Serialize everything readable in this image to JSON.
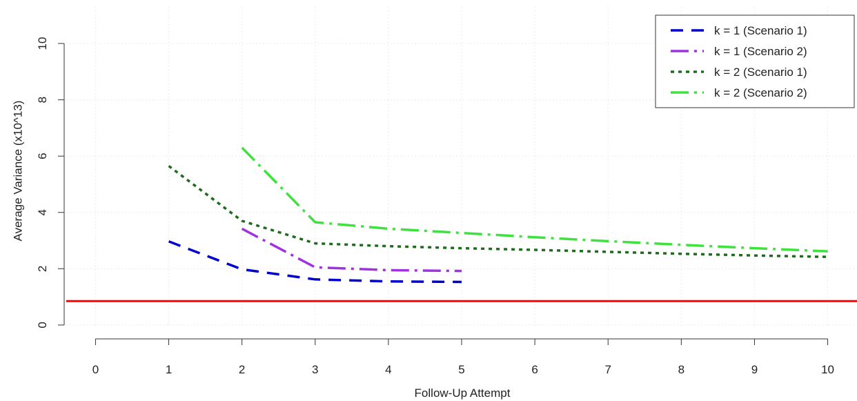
{
  "chart_data": {
    "type": "line",
    "title": "",
    "xlabel": "Follow-Up Attempt",
    "ylabel": "Average Variance (x10^13)",
    "xlim": [
      -0.4,
      10.4
    ],
    "ylim": [
      -0.1,
      11.3
    ],
    "xticks": [
      0,
      1,
      2,
      3,
      4,
      5,
      6,
      7,
      8,
      9,
      10
    ],
    "yticks": [
      0,
      2,
      4,
      6,
      8,
      10
    ],
    "grid": true,
    "legend_position": "top-right",
    "reference_line": {
      "y": 0.85,
      "color": "#ff0000"
    },
    "series": [
      {
        "name": "k = 1 (Scenario 1)",
        "color": "#0000cc",
        "dash": "18,12",
        "x": [
          1,
          2,
          3,
          4,
          5
        ],
        "y": [
          2.97,
          1.98,
          1.62,
          1.55,
          1.53
        ]
      },
      {
        "name": "k = 1 (Scenario 2)",
        "color": "#a033e0",
        "dash": "26,8,4,8",
        "x": [
          2,
          3,
          4,
          5
        ],
        "y": [
          3.42,
          2.05,
          1.95,
          1.92
        ]
      },
      {
        "name": "k = 2 (Scenario 1)",
        "color": "#1e6b1e",
        "dash": "5,6",
        "x": [
          1,
          2,
          3,
          4,
          5,
          6,
          7,
          8,
          9,
          10
        ],
        "y": [
          5.65,
          3.7,
          2.9,
          2.8,
          2.73,
          2.67,
          2.6,
          2.53,
          2.47,
          2.42
        ]
      },
      {
        "name": "k = 2 (Scenario 2)",
        "color": "#3ee23e",
        "dash": "26,8,4,8",
        "x": [
          2,
          3,
          4,
          5,
          6,
          7,
          8,
          9,
          10
        ],
        "y": [
          6.3,
          3.65,
          3.42,
          3.27,
          3.12,
          2.98,
          2.85,
          2.73,
          2.62
        ]
      }
    ]
  }
}
